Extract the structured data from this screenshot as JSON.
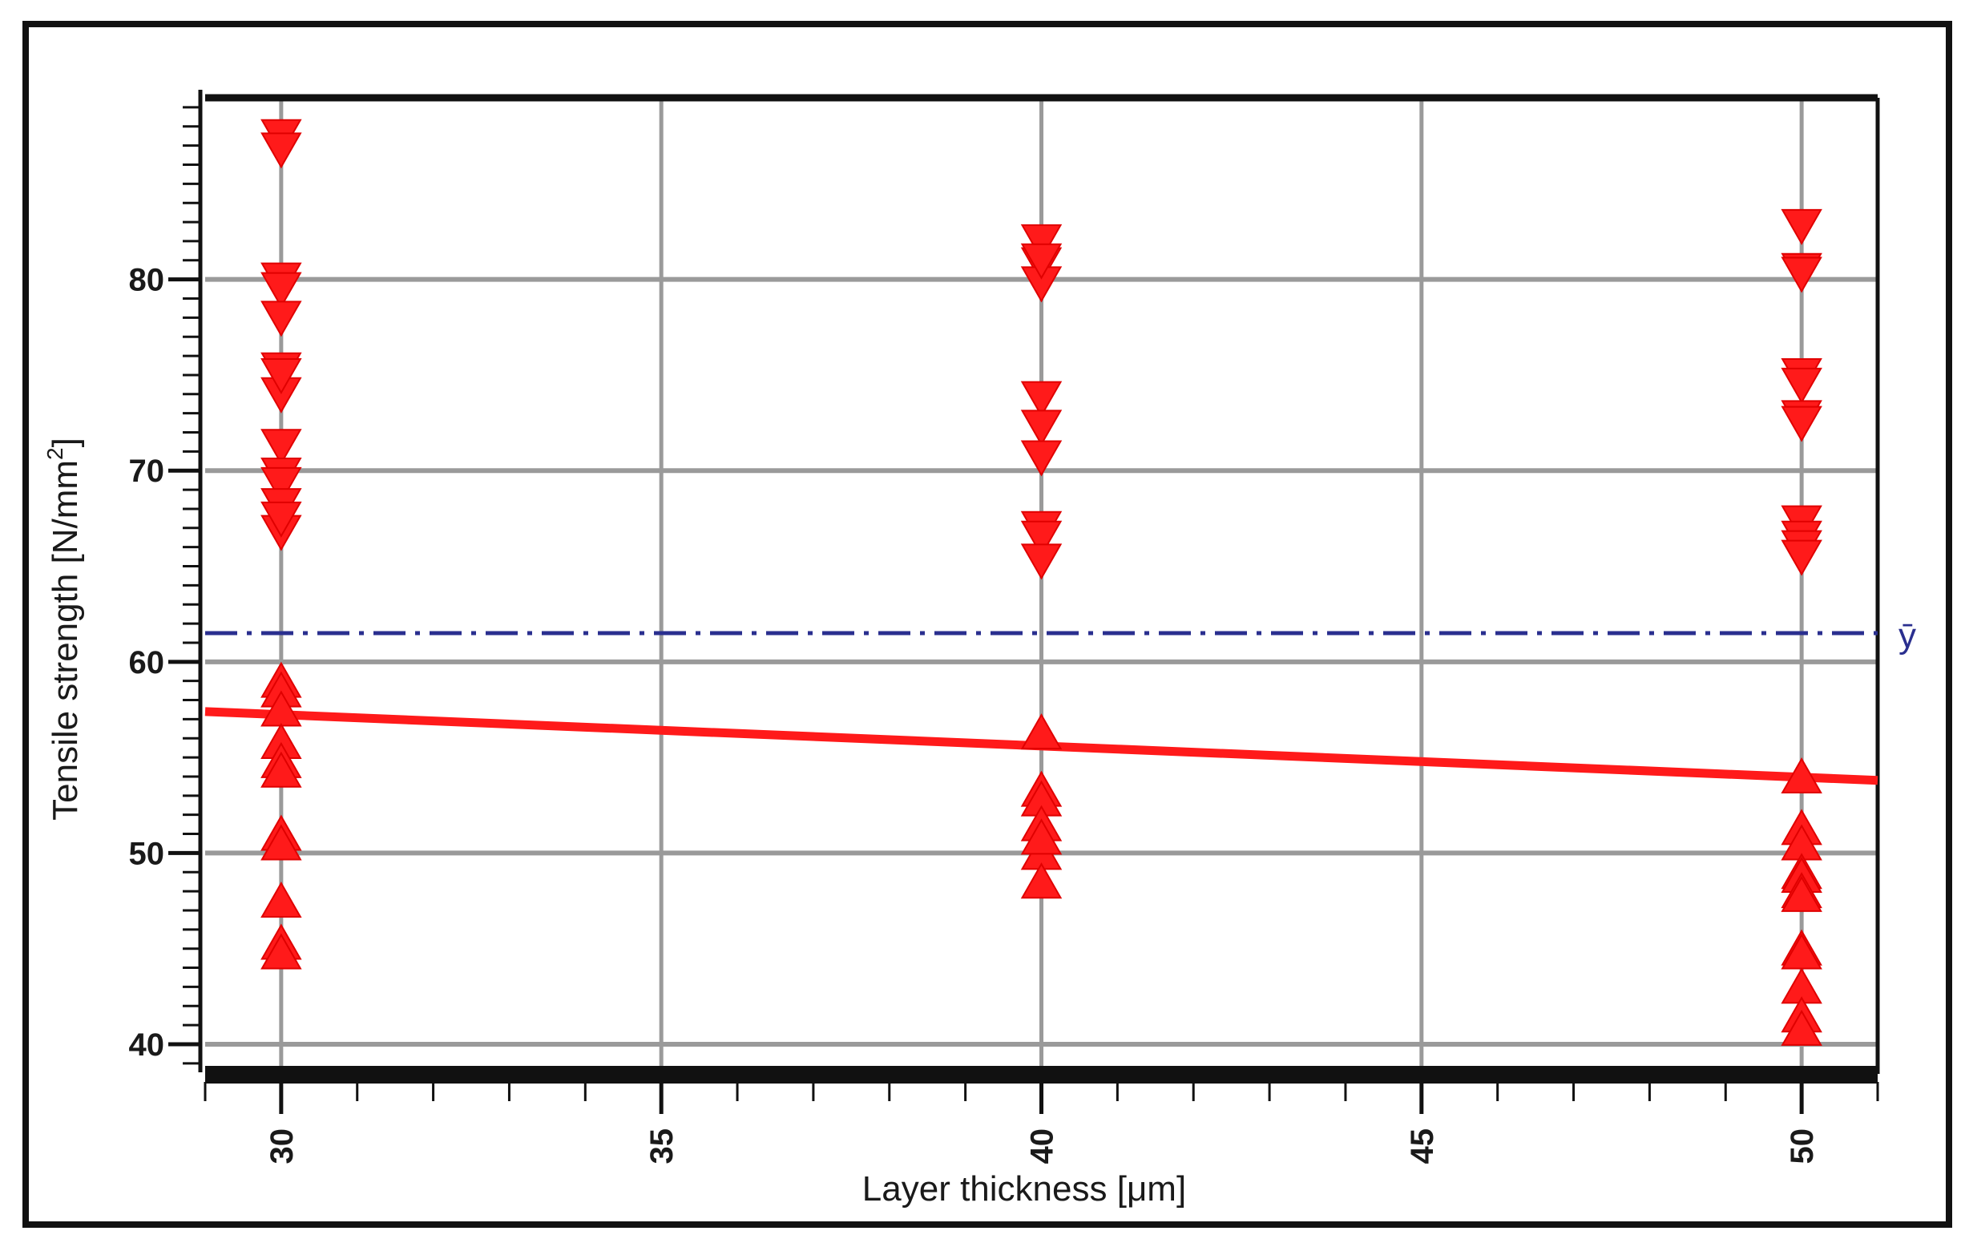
{
  "chart_data": {
    "type": "scatter",
    "title": "",
    "xlabel": "Layer thickness [μm]",
    "ylabel_main": "Tensile strength [N/mm",
    "ylabel_sup": "2",
    "ylabel_tail": "]",
    "xlim": [
      29,
      51
    ],
    "ylim": [
      38.7,
      89.5
    ],
    "x_ticks": [
      30,
      35,
      40,
      45,
      50
    ],
    "y_ticks": [
      40,
      50,
      60,
      70,
      80
    ],
    "grid": true,
    "mean_line": {
      "label": "ȳ",
      "value": 61.5,
      "color": "#2a2f8f"
    },
    "fit_line": {
      "x": [
        29,
        51
      ],
      "y": [
        57.4,
        53.8
      ],
      "color": "#ff1a1a"
    },
    "marker_color": "#ff1a1a",
    "series": [
      {
        "marker": "triangle-down",
        "x": [
          30,
          30,
          30,
          30,
          30,
          30,
          30,
          30,
          30,
          30,
          30,
          30,
          30,
          30,
          40,
          40,
          40,
          40,
          40,
          40,
          40,
          40,
          40,
          40,
          50,
          50,
          50,
          50,
          50,
          50,
          50,
          50,
          50,
          50,
          50
        ],
        "y": [
          87.5,
          86.8,
          80.0,
          79.5,
          78.0,
          75.3,
          74.0,
          71.3,
          69.8,
          69.3,
          68.2,
          66.8,
          67.5,
          75.0,
          82.0,
          80.8,
          79.8,
          73.8,
          72.3,
          70.7,
          67.0,
          66.5,
          65.3,
          81.0,
          82.8,
          80.5,
          80.3,
          75.0,
          74.5,
          72.8,
          67.3,
          66.5,
          66.0,
          65.5,
          72.5
        ]
      },
      {
        "marker": "triangle-up",
        "x": [
          30,
          30,
          30,
          30,
          30,
          30,
          30,
          30,
          30,
          30,
          30,
          40,
          40,
          40,
          40,
          40,
          40,
          40,
          50,
          50,
          50,
          50,
          50,
          50,
          50,
          50,
          50,
          50,
          50,
          50
        ],
        "y": [
          59.0,
          58.5,
          57.5,
          55.8,
          54.8,
          54.3,
          51.0,
          50.5,
          47.5,
          45.3,
          44.8,
          56.3,
          53.3,
          52.8,
          51.5,
          50.0,
          48.5,
          50.8,
          54.0,
          51.3,
          50.5,
          49.0,
          48.8,
          48.0,
          47.8,
          45.0,
          43.0,
          41.5,
          40.8,
          44.8
        ]
      }
    ]
  }
}
